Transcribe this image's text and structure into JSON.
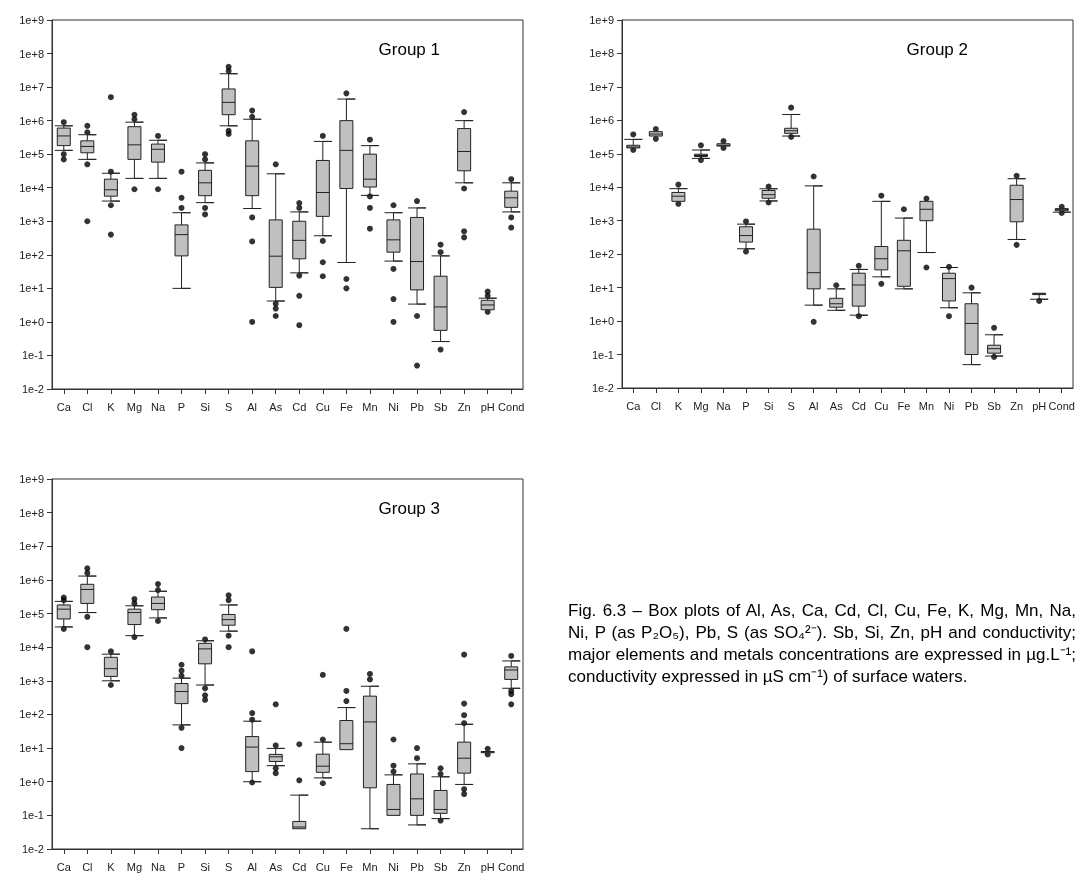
{
  "chart_data": [
    {
      "type": "box",
      "title": "Group 1",
      "categories": [
        "Ca",
        "Cl",
        "K",
        "Mg",
        "Na",
        "P",
        "Si",
        "S",
        "Al",
        "As",
        "Cd",
        "Cu",
        "Fe",
        "Mn",
        "Ni",
        "Pb",
        "Sb",
        "Zn",
        "pH",
        "Cond"
      ],
      "ylim": [
        0.01,
        1000000000
      ],
      "yticks": [
        {
          "value": 0.01,
          "label": "1e-2"
        },
        {
          "value": 0.1,
          "label": "1e-1"
        },
        {
          "value": 1,
          "label": "1e+0"
        },
        {
          "value": 10,
          "label": "1e+1"
        },
        {
          "value": 100,
          "label": "1e+2"
        },
        {
          "value": 1000,
          "label": "1e+3"
        },
        {
          "value": 10000,
          "label": "1e+4"
        },
        {
          "value": 100000,
          "label": "1e+5"
        },
        {
          "value": 1000000,
          "label": "1e+6"
        },
        {
          "value": 10000000,
          "label": "1e+7"
        },
        {
          "value": 100000000,
          "label": "1e+8"
        },
        {
          "value": 1000000000,
          "label": "1e+9"
        }
      ],
      "log": true,
      "grid": false,
      "color": "#c0c0c0",
      "boxes": [
        {
          "low": 130000,
          "q1": 180000,
          "median": 350000,
          "q3": 600000,
          "high": 700000,
          "outliers": [
            900000,
            100000,
            70000
          ]
        },
        {
          "low": 70000,
          "q1": 110000,
          "median": 170000,
          "q3": 250000,
          "high": 380000,
          "outliers": [
            700000,
            450000,
            50000,
            1000
          ]
        },
        {
          "low": 4000,
          "q1": 5600,
          "median": 8700,
          "q3": 18000,
          "high": 27000,
          "outliers": [
            5000000,
            30000,
            3000,
            400
          ]
        },
        {
          "low": 19000,
          "q1": 70000,
          "median": 190000,
          "q3": 660000,
          "high": 900000,
          "outliers": [
            1500000,
            1100000,
            9000
          ]
        },
        {
          "low": 19000,
          "q1": 58000,
          "median": 140000,
          "q3": 200000,
          "high": 260000,
          "outliers": [
            350000,
            9000
          ]
        },
        {
          "low": 10,
          "q1": 93,
          "median": 400,
          "q3": 780,
          "high": 1800,
          "outliers": [
            30000,
            5000,
            2500
          ]
        },
        {
          "low": 3600,
          "q1": 5800,
          "median": 14000,
          "q3": 33000,
          "high": 55000,
          "outliers": [
            100000,
            70000,
            2500,
            1600
          ]
        },
        {
          "low": 700000,
          "q1": 1500000,
          "median": 3500000,
          "q3": 8800000,
          "high": 25000000,
          "outliers": [
            40000000,
            30000000,
            500000,
            400000
          ]
        },
        {
          "low": 2400,
          "q1": 5800,
          "median": 44000,
          "q3": 250000,
          "high": 1100000,
          "outliers": [
            2000000,
            1300000,
            1300,
            250,
            1
          ]
        },
        {
          "low": 4.2,
          "q1": 10.7,
          "median": 91,
          "q3": 1100,
          "high": 26000,
          "outliers": [
            50000,
            3.5,
            2.5,
            1.5
          ]
        },
        {
          "low": 29,
          "q1": 76,
          "median": 270,
          "q3": 1000,
          "high": 1900,
          "outliers": [
            3500,
            2500,
            24,
            6,
            0.8
          ]
        },
        {
          "low": 370,
          "q1": 1400,
          "median": 7200,
          "q3": 65000,
          "high": 240000,
          "outliers": [
            350000,
            260,
            60,
            23
          ]
        },
        {
          "low": 59,
          "q1": 9500,
          "median": 130000,
          "q3": 1000000,
          "high": 4400000,
          "outliers": [
            6500000,
            19,
            10
          ]
        },
        {
          "low": 5900,
          "q1": 10500,
          "median": 18000,
          "q3": 100000,
          "high": 180000,
          "outliers": [
            270000,
            5500,
            2500,
            600
          ]
        },
        {
          "low": 65,
          "q1": 120,
          "median": 280,
          "q3": 1100,
          "high": 1800,
          "outliers": [
            3000,
            38,
            4.8,
            1
          ]
        },
        {
          "low": 3.4,
          "q1": 9,
          "median": 63,
          "q3": 1300,
          "high": 2500,
          "outliers": [
            4000,
            1.5,
            0.05
          ]
        },
        {
          "low": 0.26,
          "q1": 0.56,
          "median": 2.8,
          "q3": 23,
          "high": 93,
          "outliers": [
            200,
            120,
            0.15
          ]
        },
        {
          "low": 14000,
          "q1": 32000,
          "median": 120000,
          "q3": 580000,
          "high": 1000000,
          "outliers": [
            1800000,
            9500,
            500,
            330
          ]
        },
        {
          "low": 2.1,
          "q1": 2.3,
          "median": 3.2,
          "q3": 4.4,
          "high": 5.1,
          "outliers": [
            8,
            6,
            2
          ]
        },
        {
          "low": 1900,
          "q1": 2600,
          "median": 5000,
          "q3": 7900,
          "high": 14000,
          "outliers": [
            18000,
            1300,
            650
          ]
        }
      ]
    },
    {
      "type": "box",
      "title": "Group 2",
      "categories": [
        "Ca",
        "Cl",
        "K",
        "Mg",
        "Na",
        "P",
        "Si",
        "S",
        "Al",
        "As",
        "Cd",
        "Cu",
        "Fe",
        "Mn",
        "Ni",
        "Pb",
        "Sb",
        "Zn",
        "pH",
        "Cond"
      ],
      "ylim": [
        0.01,
        1000000000
      ],
      "yticks": [
        {
          "value": 0.01,
          "label": "1e-2"
        },
        {
          "value": 0.1,
          "label": "1e-1"
        },
        {
          "value": 1,
          "label": "1e+0"
        },
        {
          "value": 10,
          "label": "1e+1"
        },
        {
          "value": 100,
          "label": "1e+2"
        },
        {
          "value": 1000,
          "label": "1e+3"
        },
        {
          "value": 10000,
          "label": "1e+4"
        },
        {
          "value": 100000,
          "label": "1e+5"
        },
        {
          "value": 1000000,
          "label": "1e+6"
        },
        {
          "value": 10000000,
          "label": "1e+7"
        },
        {
          "value": 100000000,
          "label": "1e+8"
        },
        {
          "value": 1000000000,
          "label": "1e+9"
        }
      ],
      "log": true,
      "grid": false,
      "color": "#c0c0c0",
      "boxes": [
        {
          "low": 140000,
          "q1": 150000,
          "median": 160000,
          "q3": 180000,
          "high": 270000,
          "outliers": [
            380000,
            130000
          ]
        },
        {
          "low": 310000,
          "q1": 340000,
          "median": 390000,
          "q3": 460000,
          "high": 490000,
          "outliers": [
            550000,
            280000
          ]
        },
        {
          "low": 3500,
          "q1": 3800,
          "median": 5400,
          "q3": 7000,
          "high": 9100,
          "outliers": [
            12000,
            3200
          ]
        },
        {
          "low": 73000,
          "q1": 83000,
          "median": 89000,
          "q3": 97000,
          "high": 130000,
          "outliers": [
            180000,
            65000
          ]
        },
        {
          "low": 160000,
          "q1": 170000,
          "median": 180000,
          "q3": 200000,
          "high": 210000,
          "outliers": [
            240000,
            150000
          ]
        },
        {
          "low": 145,
          "q1": 230,
          "median": 360,
          "q3": 660,
          "high": 790,
          "outliers": [
            950,
            120
          ]
        },
        {
          "low": 3900,
          "q1": 4700,
          "median": 6000,
          "q3": 8000,
          "high": 9000,
          "outliers": [
            10500,
            3500
          ]
        },
        {
          "low": 340000,
          "q1": 410000,
          "median": 490000,
          "q3": 580000,
          "high": 1500000,
          "outliers": [
            2400000,
            320000
          ]
        },
        {
          "low": 3,
          "q1": 9.2,
          "median": 28,
          "q3": 560,
          "high": 11000,
          "outliers": [
            21000,
            0.95
          ]
        },
        {
          "low": 2.1,
          "q1": 2.6,
          "median": 3.3,
          "q3": 4.8,
          "high": 9.2,
          "outliers": [
            11.8
          ]
        },
        {
          "low": 1.5,
          "q1": 2.8,
          "median": 12,
          "q3": 27,
          "high": 35,
          "outliers": [
            45,
            1.4
          ]
        },
        {
          "low": 21,
          "q1": 34,
          "median": 73,
          "q3": 170,
          "high": 3800,
          "outliers": [
            5600,
            13
          ]
        },
        {
          "low": 9.2,
          "q1": 11,
          "median": 126,
          "q3": 260,
          "high": 1200,
          "outliers": [
            2200
          ]
        },
        {
          "low": 112,
          "q1": 1000,
          "median": 2200,
          "q3": 3800,
          "high": 4200,
          "outliers": [
            4600,
            40
          ]
        },
        {
          "low": 2.5,
          "q1": 4,
          "median": 18.6,
          "q3": 27,
          "high": 40,
          "outliers": [
            42,
            1.4
          ]
        },
        {
          "low": 0.05,
          "q1": 0.1,
          "median": 0.85,
          "q3": 3.3,
          "high": 7,
          "outliers": [
            10
          ]
        },
        {
          "low": 0.09,
          "q1": 0.11,
          "median": 0.15,
          "q3": 0.19,
          "high": 0.39,
          "outliers": [
            0.63,
            0.085
          ]
        },
        {
          "low": 275,
          "q1": 930,
          "median": 4300,
          "q3": 11500,
          "high": 18000,
          "outliers": [
            22000,
            190
          ]
        },
        {
          "low": 4.5,
          "q1": 6.2,
          "median": 6.5,
          "q3": 6.8,
          "high": 7,
          "outliers": [
            4
          ]
        },
        {
          "low": 1800,
          "q1": 2000,
          "median": 2200,
          "q3": 2300,
          "high": 2400,
          "outliers": [
            2600,
            1700
          ]
        }
      ]
    },
    {
      "type": "box",
      "title": "Group 3",
      "categories": [
        "Ca",
        "Cl",
        "K",
        "Mg",
        "Na",
        "P",
        "Si",
        "S",
        "Al",
        "As",
        "Cd",
        "Cu",
        "Fe",
        "Mn",
        "Ni",
        "Pb",
        "Sb",
        "Zn",
        "pH",
        "Cond"
      ],
      "ylim": [
        0.01,
        1000000000
      ],
      "yticks": [
        {
          "value": 0.01,
          "label": "1e-2"
        },
        {
          "value": 0.1,
          "label": "1e-1"
        },
        {
          "value": 1,
          "label": "1e+0"
        },
        {
          "value": 10,
          "label": "1e+1"
        },
        {
          "value": 100,
          "label": "1e+2"
        },
        {
          "value": 1000,
          "label": "1e+3"
        },
        {
          "value": 10000,
          "label": "1e+4"
        },
        {
          "value": 100000,
          "label": "1e+5"
        },
        {
          "value": 1000000,
          "label": "1e+6"
        },
        {
          "value": 10000000,
          "label": "1e+7"
        },
        {
          "value": 100000000,
          "label": "1e+8"
        },
        {
          "value": 1000000000,
          "label": "1e+9"
        }
      ],
      "log": true,
      "grid": false,
      "color": "#c0c0c0",
      "boxes": [
        {
          "low": 40000,
          "q1": 69000,
          "median": 135000,
          "q3": 180000,
          "high": 230000,
          "outliers": [
            300000,
            250000,
            35000
          ]
        },
        {
          "low": 107000,
          "q1": 200000,
          "median": 520000,
          "q3": 740000,
          "high": 1300000,
          "outliers": [
            2200000,
            1600000,
            80000,
            10000
          ]
        },
        {
          "low": 1000,
          "q1": 1350,
          "median": 2300,
          "q3": 5000,
          "high": 6200,
          "outliers": [
            7500,
            750
          ]
        },
        {
          "low": 22000,
          "q1": 47000,
          "median": 107000,
          "q3": 135000,
          "high": 170000,
          "outliers": [
            270000,
            200000,
            20000
          ]
        },
        {
          "low": 74000,
          "q1": 130000,
          "median": 200000,
          "q3": 310000,
          "high": 460000,
          "outliers": [
            750000,
            500000,
            60000
          ]
        },
        {
          "low": 49,
          "q1": 210,
          "median": 480,
          "q3": 830,
          "high": 1200,
          "outliers": [
            3000,
            2000,
            1400,
            40,
            10
          ]
        },
        {
          "low": 750,
          "q1": 3200,
          "median": 8900,
          "q3": 13000,
          "high": 15500,
          "outliers": [
            17000,
            600,
            370,
            270
          ]
        },
        {
          "low": 30000,
          "q1": 45000,
          "median": 66000,
          "q3": 94000,
          "high": 180000,
          "outliers": [
            350000,
            250000,
            22000,
            10000
          ]
        },
        {
          "low": 1,
          "q1": 2,
          "median": 10.7,
          "q3": 22,
          "high": 63,
          "outliers": [
            7500,
            110,
            70,
            0.95
          ]
        },
        {
          "low": 3,
          "q1": 4,
          "median": 5.5,
          "q3": 6.5,
          "high": 9.8,
          "outliers": [
            200,
            12,
            2.5,
            1.8
          ]
        },
        {
          "low": 0.04,
          "q1": 0.04,
          "median": 0.045,
          "q3": 0.066,
          "high": 0.4,
          "outliers": [
            13,
            1.1
          ]
        },
        {
          "low": 1.3,
          "q1": 1.9,
          "median": 2.9,
          "q3": 6.6,
          "high": 15,
          "outliers": [
            1500,
            18,
            0.9
          ]
        },
        {
          "low": 9,
          "q1": 9,
          "median": 13.5,
          "q3": 66,
          "high": 160,
          "outliers": [
            35000,
            500,
            250
          ]
        },
        {
          "low": 0.04,
          "q1": 0.66,
          "median": 60,
          "q3": 350,
          "high": 690,
          "outliers": [
            1600,
            1100
          ]
        },
        {
          "low": 0.1,
          "q1": 0.1,
          "median": 0.15,
          "q3": 0.83,
          "high": 1.6,
          "outliers": [
            18,
            3,
            2
          ]
        },
        {
          "low": 0.052,
          "q1": 0.1,
          "median": 0.31,
          "q3": 1.7,
          "high": 3.4,
          "outliers": [
            10,
            5
          ]
        },
        {
          "low": 0.08,
          "q1": 0.115,
          "median": 0.15,
          "q3": 0.55,
          "high": 1.4,
          "outliers": [
            2.5,
            1.7,
            0.07
          ]
        },
        {
          "low": 0.83,
          "q1": 1.8,
          "median": 5,
          "q3": 15,
          "high": 51,
          "outliers": [
            6000,
            210,
            95,
            55,
            0.6,
            0.43
          ]
        },
        {
          "low": 7,
          "q1": 7.3,
          "median": 7.7,
          "q3": 7.9,
          "high": 8.3,
          "outliers": [
            9.5,
            6.5
          ]
        },
        {
          "low": 600,
          "q1": 1100,
          "median": 2100,
          "q3": 2600,
          "high": 3900,
          "outliers": [
            5500,
            500,
            400,
            200
          ]
        }
      ]
    },
    {
      "type": "other",
      "annotations": [
        "Fig. 6.3 – Box plots of Al, As, Ca, Cd, Cl, Cu, Fe, K, Mg, Mn, Na, Ni, P (as P₂O₅), Pb, S (as SO₄²⁻). Sb, Si, Zn, pH and conductivity; major elements and metals concentrations are expressed in µg.L⁻¹; conductivity expressed in µS cm⁻¹) of surface waters."
      ]
    }
  ]
}
